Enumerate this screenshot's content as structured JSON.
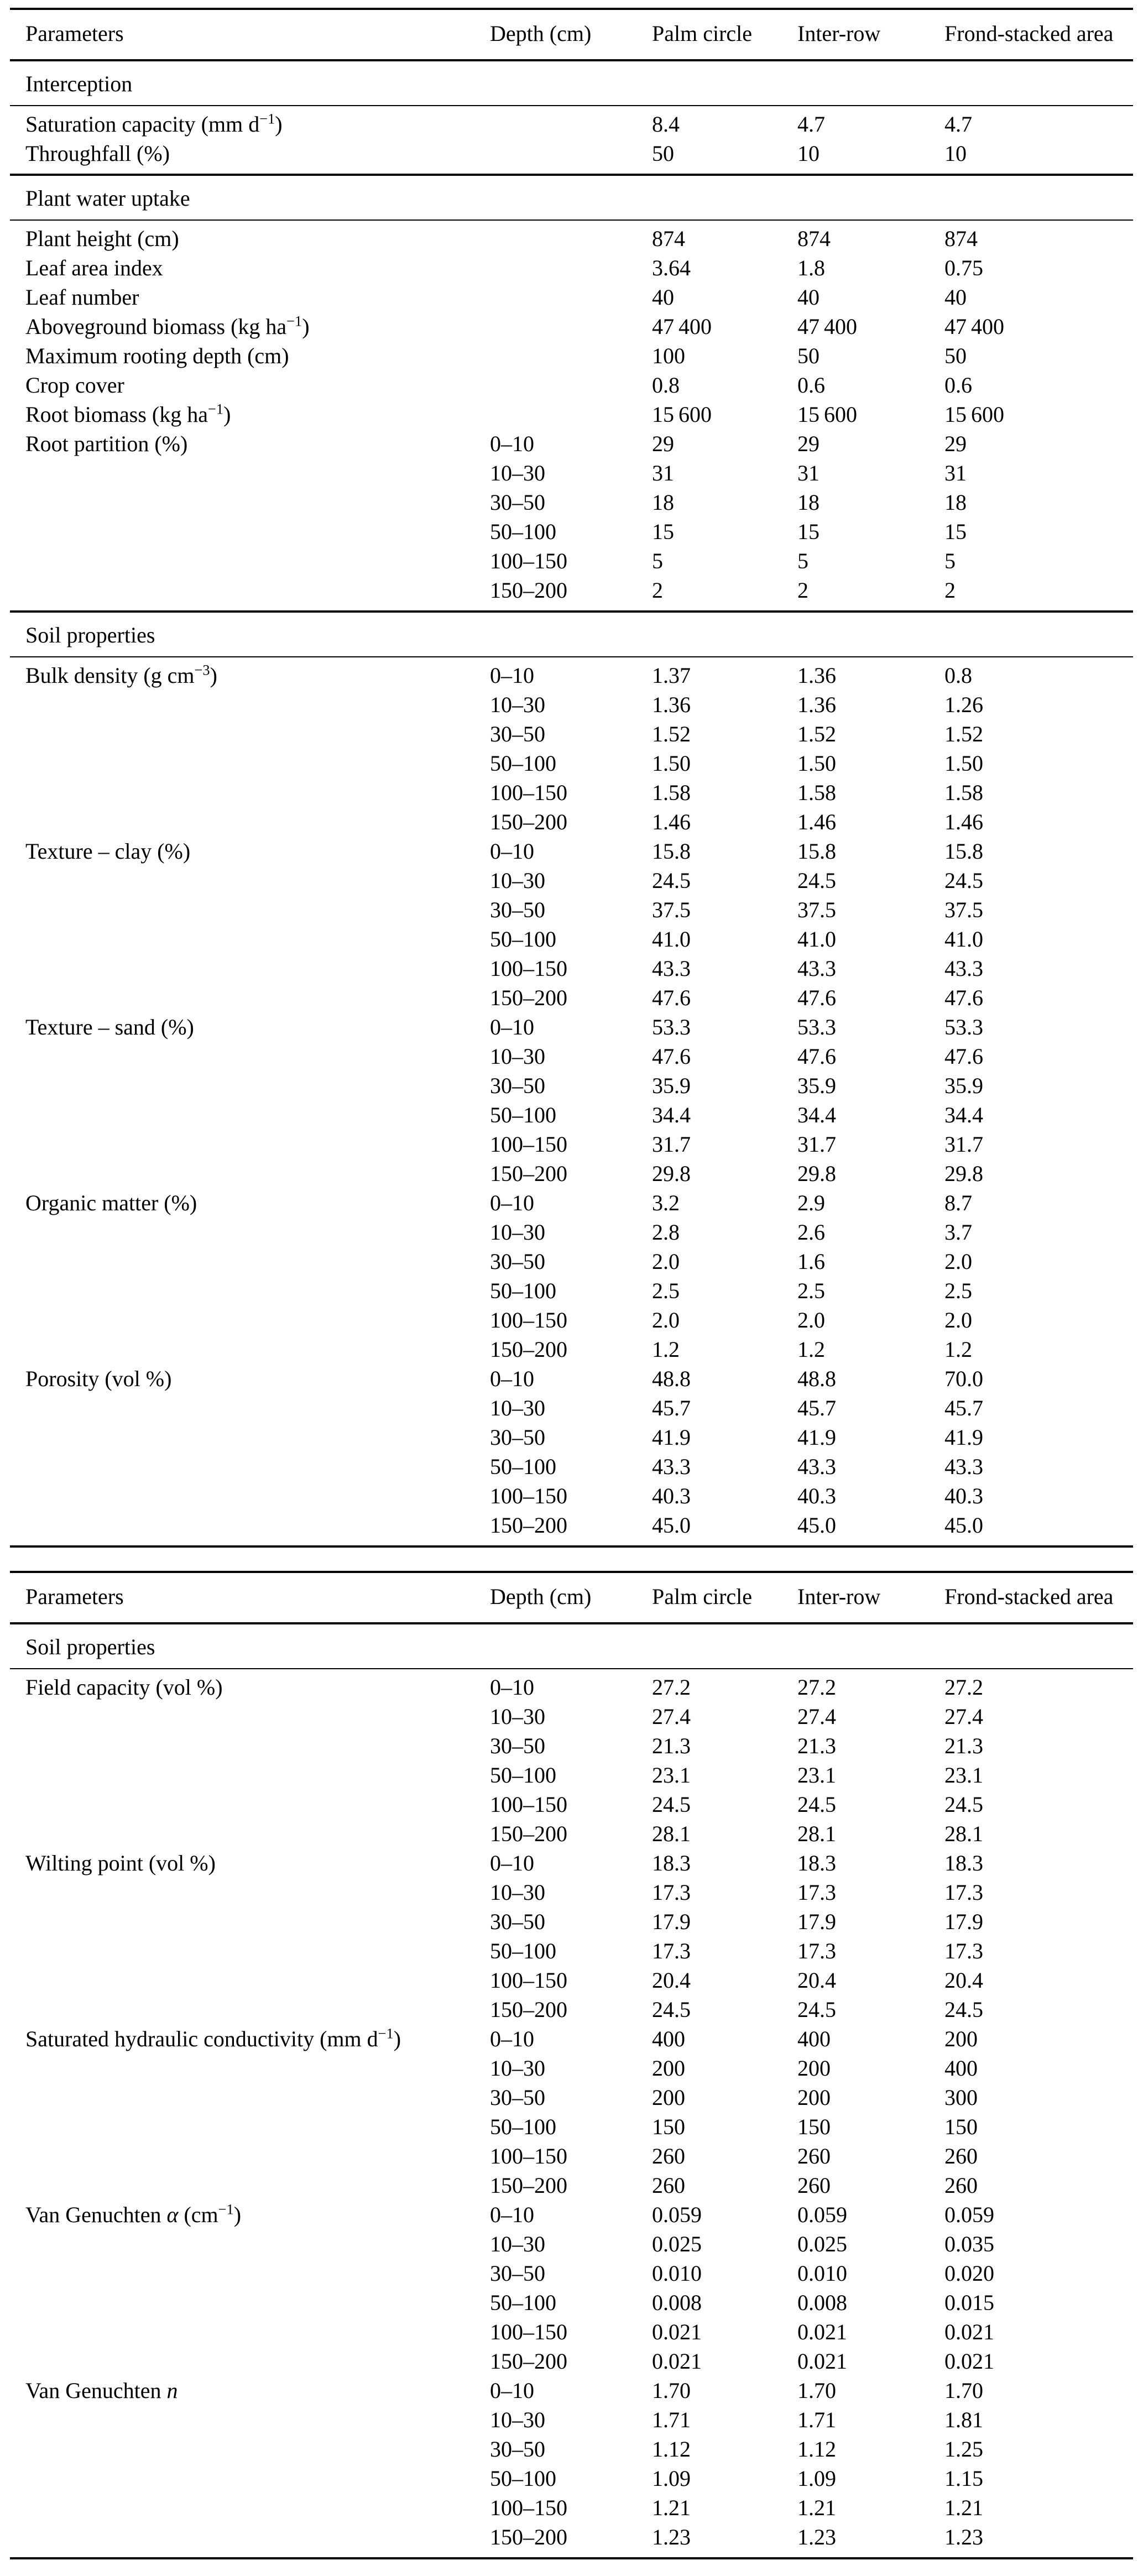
{
  "colors": {
    "background": "#ffffff",
    "text": "#000000",
    "rule": "#000000"
  },
  "tables": [
    {
      "columns": [
        "Parameters",
        "Depth (cm)",
        "Palm circle",
        "Inter-row",
        "Frond-stacked area"
      ],
      "sections": [
        {
          "title": "Interception",
          "rows": [
            {
              "param": "Saturation capacity (mm d^{−1})",
              "depth": "",
              "values": [
                "8.4",
                "4.7",
                "4.7"
              ]
            },
            {
              "param": "Throughfall (%)",
              "depth": "",
              "values": [
                "50",
                "10",
                "10"
              ]
            }
          ]
        },
        {
          "title": "Plant water uptake",
          "rows": [
            {
              "param": "Plant height (cm)",
              "depth": "",
              "values": [
                "874",
                "874",
                "874"
              ]
            },
            {
              "param": "Leaf area index",
              "depth": "",
              "values": [
                "3.64",
                "1.8",
                "0.75"
              ]
            },
            {
              "param": "Leaf number",
              "depth": "",
              "values": [
                "40",
                "40",
                "40"
              ]
            },
            {
              "param": "Aboveground biomass (kg ha^{−1})",
              "depth": "",
              "values": [
                "47 400",
                "47 400",
                "47 400"
              ]
            },
            {
              "param": "Maximum rooting depth (cm)",
              "depth": "",
              "values": [
                "100",
                "50",
                "50"
              ]
            },
            {
              "param": "Crop cover",
              "depth": "",
              "values": [
                "0.8",
                "0.6",
                "0.6"
              ]
            },
            {
              "param": "Root biomass (kg ha^{−1})",
              "depth": "",
              "values": [
                "15 600",
                "15 600",
                "15 600"
              ]
            },
            {
              "param": "Root partition (%)",
              "depth": "0–10",
              "values": [
                "29",
                "29",
                "29"
              ]
            },
            {
              "param": "",
              "depth": "10–30",
              "values": [
                "31",
                "31",
                "31"
              ]
            },
            {
              "param": "",
              "depth": "30–50",
              "values": [
                "18",
                "18",
                "18"
              ]
            },
            {
              "param": "",
              "depth": "50–100",
              "values": [
                "15",
                "15",
                "15"
              ]
            },
            {
              "param": "",
              "depth": "100–150",
              "values": [
                "5",
                "5",
                "5"
              ]
            },
            {
              "param": "",
              "depth": "150–200",
              "values": [
                "2",
                "2",
                "2"
              ]
            }
          ]
        },
        {
          "title": "Soil properties",
          "rows": [
            {
              "param": "Bulk density (g cm^{−3})",
              "depth": "0–10",
              "values": [
                "1.37",
                "1.36",
                "0.8"
              ]
            },
            {
              "param": "",
              "depth": "10–30",
              "values": [
                "1.36",
                "1.36",
                "1.26"
              ]
            },
            {
              "param": "",
              "depth": "30–50",
              "values": [
                "1.52",
                "1.52",
                "1.52"
              ]
            },
            {
              "param": "",
              "depth": "50–100",
              "values": [
                "1.50",
                "1.50",
                "1.50"
              ]
            },
            {
              "param": "",
              "depth": "100–150",
              "values": [
                "1.58",
                "1.58",
                "1.58"
              ]
            },
            {
              "param": "",
              "depth": "150–200",
              "values": [
                "1.46",
                "1.46",
                "1.46"
              ]
            },
            {
              "param": "Texture – clay (%)",
              "depth": "0–10",
              "values": [
                "15.8",
                "15.8",
                "15.8"
              ]
            },
            {
              "param": "",
              "depth": "10–30",
              "values": [
                "24.5",
                "24.5",
                "24.5"
              ]
            },
            {
              "param": "",
              "depth": "30–50",
              "values": [
                "37.5",
                "37.5",
                "37.5"
              ]
            },
            {
              "param": "",
              "depth": "50–100",
              "values": [
                "41.0",
                "41.0",
                "41.0"
              ]
            },
            {
              "param": "",
              "depth": "100–150",
              "values": [
                "43.3",
                "43.3",
                "43.3"
              ]
            },
            {
              "param": "",
              "depth": "150–200",
              "values": [
                "47.6",
                "47.6",
                "47.6"
              ]
            },
            {
              "param": "Texture – sand (%)",
              "depth": "0–10",
              "values": [
                "53.3",
                "53.3",
                "53.3"
              ]
            },
            {
              "param": "",
              "depth": "10–30",
              "values": [
                "47.6",
                "47.6",
                "47.6"
              ]
            },
            {
              "param": "",
              "depth": "30–50",
              "values": [
                "35.9",
                "35.9",
                "35.9"
              ]
            },
            {
              "param": "",
              "depth": "50–100",
              "values": [
                "34.4",
                "34.4",
                "34.4"
              ]
            },
            {
              "param": "",
              "depth": "100–150",
              "values": [
                "31.7",
                "31.7",
                "31.7"
              ]
            },
            {
              "param": "",
              "depth": "150–200",
              "values": [
                "29.8",
                "29.8",
                "29.8"
              ]
            },
            {
              "param": "Organic matter (%)",
              "depth": "0–10",
              "values": [
                "3.2",
                "2.9",
                "8.7"
              ]
            },
            {
              "param": "",
              "depth": "10–30",
              "values": [
                "2.8",
                "2.6",
                "3.7"
              ]
            },
            {
              "param": "",
              "depth": "30–50",
              "values": [
                "2.0",
                "1.6",
                "2.0"
              ]
            },
            {
              "param": "",
              "depth": "50–100",
              "values": [
                "2.5",
                "2.5",
                "2.5"
              ]
            },
            {
              "param": "",
              "depth": "100–150",
              "values": [
                "2.0",
                "2.0",
                "2.0"
              ]
            },
            {
              "param": "",
              "depth": "150–200",
              "values": [
                "1.2",
                "1.2",
                "1.2"
              ]
            },
            {
              "param": "Porosity (vol %)",
              "depth": "0–10",
              "values": [
                "48.8",
                "48.8",
                "70.0"
              ]
            },
            {
              "param": "",
              "depth": "10–30",
              "values": [
                "45.7",
                "45.7",
                "45.7"
              ]
            },
            {
              "param": "",
              "depth": "30–50",
              "values": [
                "41.9",
                "41.9",
                "41.9"
              ]
            },
            {
              "param": "",
              "depth": "50–100",
              "values": [
                "43.3",
                "43.3",
                "43.3"
              ]
            },
            {
              "param": "",
              "depth": "100–150",
              "values": [
                "40.3",
                "40.3",
                "40.3"
              ]
            },
            {
              "param": "",
              "depth": "150–200",
              "values": [
                "45.0",
                "45.0",
                "45.0"
              ]
            }
          ]
        }
      ]
    },
    {
      "columns": [
        "Parameters",
        "Depth (cm)",
        "Palm circle",
        "Inter-row",
        "Frond-stacked area"
      ],
      "sections": [
        {
          "title": "Soil properties",
          "rows": [
            {
              "param": "Field capacity (vol %)",
              "depth": "0–10",
              "values": [
                "27.2",
                "27.2",
                "27.2"
              ]
            },
            {
              "param": "",
              "depth": "10–30",
              "values": [
                "27.4",
                "27.4",
                "27.4"
              ]
            },
            {
              "param": "",
              "depth": "30–50",
              "values": [
                "21.3",
                "21.3",
                "21.3"
              ]
            },
            {
              "param": "",
              "depth": "50–100",
              "values": [
                "23.1",
                "23.1",
                "23.1"
              ]
            },
            {
              "param": "",
              "depth": "100–150",
              "values": [
                "24.5",
                "24.5",
                "24.5"
              ]
            },
            {
              "param": "",
              "depth": "150–200",
              "values": [
                "28.1",
                "28.1",
                "28.1"
              ]
            },
            {
              "param": "Wilting point (vol %)",
              "depth": "0–10",
              "values": [
                "18.3",
                "18.3",
                "18.3"
              ]
            },
            {
              "param": "",
              "depth": "10–30",
              "values": [
                "17.3",
                "17.3",
                "17.3"
              ]
            },
            {
              "param": "",
              "depth": "30–50",
              "values": [
                "17.9",
                "17.9",
                "17.9"
              ]
            },
            {
              "param": "",
              "depth": "50–100",
              "values": [
                "17.3",
                "17.3",
                "17.3"
              ]
            },
            {
              "param": "",
              "depth": "100–150",
              "values": [
                "20.4",
                "20.4",
                "20.4"
              ]
            },
            {
              "param": "",
              "depth": "150–200",
              "values": [
                "24.5",
                "24.5",
                "24.5"
              ]
            },
            {
              "param": "Saturated hydraulic conductivity (mm d^{−1})",
              "depth": "0–10",
              "values": [
                "400",
                "400",
                "200"
              ]
            },
            {
              "param": "",
              "depth": "10–30",
              "values": [
                "200",
                "200",
                "400"
              ]
            },
            {
              "param": "",
              "depth": "30–50",
              "values": [
                "200",
                "200",
                "300"
              ]
            },
            {
              "param": "",
              "depth": "50–100",
              "values": [
                "150",
                "150",
                "150"
              ]
            },
            {
              "param": "",
              "depth": "100–150",
              "values": [
                "260",
                "260",
                "260"
              ]
            },
            {
              "param": "",
              "depth": "150–200",
              "values": [
                "260",
                "260",
                "260"
              ]
            },
            {
              "param": "Van Genuchten *α* (cm^{−1})",
              "depth": "0–10",
              "values": [
                "0.059",
                "0.059",
                "0.059"
              ]
            },
            {
              "param": "",
              "depth": "10–30",
              "values": [
                "0.025",
                "0.025",
                "0.035"
              ]
            },
            {
              "param": "",
              "depth": "30–50",
              "values": [
                "0.010",
                "0.010",
                "0.020"
              ]
            },
            {
              "param": "",
              "depth": "50–100",
              "values": [
                "0.008",
                "0.008",
                "0.015"
              ]
            },
            {
              "param": "",
              "depth": "100–150",
              "values": [
                "0.021",
                "0.021",
                "0.021"
              ]
            },
            {
              "param": "",
              "depth": "150–200",
              "values": [
                "0.021",
                "0.021",
                "0.021"
              ]
            },
            {
              "param": "Van Genuchten *n*",
              "depth": "0–10",
              "values": [
                "1.70",
                "1.70",
                "1.70"
              ]
            },
            {
              "param": "",
              "depth": "10–30",
              "values": [
                "1.71",
                "1.71",
                "1.81"
              ]
            },
            {
              "param": "",
              "depth": "30–50",
              "values": [
                "1.12",
                "1.12",
                "1.25"
              ]
            },
            {
              "param": "",
              "depth": "50–100",
              "values": [
                "1.09",
                "1.09",
                "1.15"
              ]
            },
            {
              "param": "",
              "depth": "100–150",
              "values": [
                "1.21",
                "1.21",
                "1.21"
              ]
            },
            {
              "param": "",
              "depth": "150–200",
              "values": [
                "1.23",
                "1.23",
                "1.23"
              ]
            }
          ]
        }
      ]
    }
  ]
}
